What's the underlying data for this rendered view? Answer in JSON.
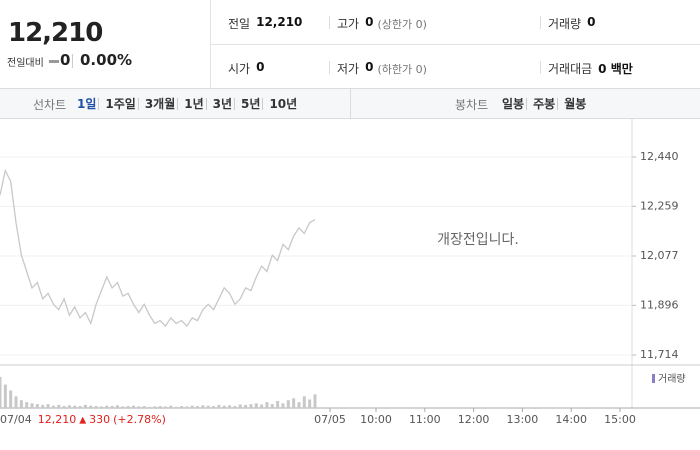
{
  "quote": {
    "price": "12,210",
    "change_label": "전일대비",
    "change": "0",
    "change_rate": "0.00%"
  },
  "stats": [
    {
      "label": "전일",
      "value": "12,210"
    },
    {
      "label": "고가",
      "value": "0",
      "note": "(상한가 0)"
    },
    {
      "label": "거래량",
      "value": "0"
    },
    {
      "label": "시가",
      "value": "0"
    },
    {
      "label": "저가",
      "value": "0",
      "note": "(하한가 0)"
    },
    {
      "label": "거래대금",
      "value": "0 백만"
    }
  ],
  "tabs": {
    "line_label": "선차트",
    "line": [
      "1일",
      "1주일",
      "3개월",
      "1년",
      "3년",
      "5년",
      "10년"
    ],
    "selected": 0,
    "candle_label": "봉차트",
    "candle": [
      "일봉",
      "주봉",
      "월봉"
    ]
  },
  "chart_data": {
    "type": "line",
    "annotation": "개장전입니다.",
    "color": "#c8c8c8",
    "values": [
      12300,
      12390,
      12350,
      12200,
      12080,
      12020,
      11960,
      11980,
      11920,
      11940,
      11900,
      11880,
      11920,
      11860,
      11890,
      11850,
      11870,
      11830,
      11900,
      11950,
      12000,
      11960,
      11980,
      11930,
      11940,
      11900,
      11870,
      11900,
      11860,
      11830,
      11840,
      11820,
      11850,
      11830,
      11840,
      11820,
      11850,
      11840,
      11880,
      11900,
      11880,
      11920,
      11960,
      11940,
      11900,
      11920,
      11960,
      11950,
      12000,
      12040,
      12020,
      12080,
      12060,
      12120,
      12100,
      12150,
      12180,
      12160,
      12200,
      12210
    ],
    "ylim": [
      11714,
      12440
    ],
    "yticks": [
      {
        "value": 12440,
        "label": "12,440"
      },
      {
        "value": 12259,
        "label": "12,259"
      },
      {
        "value": 12077,
        "label": "12,077"
      },
      {
        "value": 11896,
        "label": "11,896"
      },
      {
        "value": 11714,
        "label": "11,714"
      }
    ],
    "grid": true,
    "volume": {
      "name": "거래량",
      "color": "#c8c8c8",
      "ylim": [
        0,
        100
      ],
      "values": [
        80,
        60,
        45,
        30,
        20,
        15,
        12,
        10,
        8,
        10,
        6,
        8,
        5,
        7,
        6,
        5,
        8,
        6,
        5,
        4,
        6,
        5,
        7,
        4,
        5,
        6,
        4,
        5,
        3,
        4,
        5,
        4,
        6,
        3,
        5,
        4,
        6,
        5,
        7,
        6,
        5,
        8,
        6,
        7,
        5,
        9,
        8,
        10,
        12,
        9,
        15,
        10,
        18,
        12,
        20,
        25,
        15,
        30,
        22,
        35
      ]
    },
    "prev_close": {
      "date": "07/04",
      "price": "12,210",
      "arrow": "▲",
      "change": "330",
      "rate": "(+2.78%)"
    },
    "x_labels": [
      "07/05",
      "10:00",
      "11:00",
      "12:00",
      "13:00",
      "14:00",
      "15:00"
    ]
  }
}
